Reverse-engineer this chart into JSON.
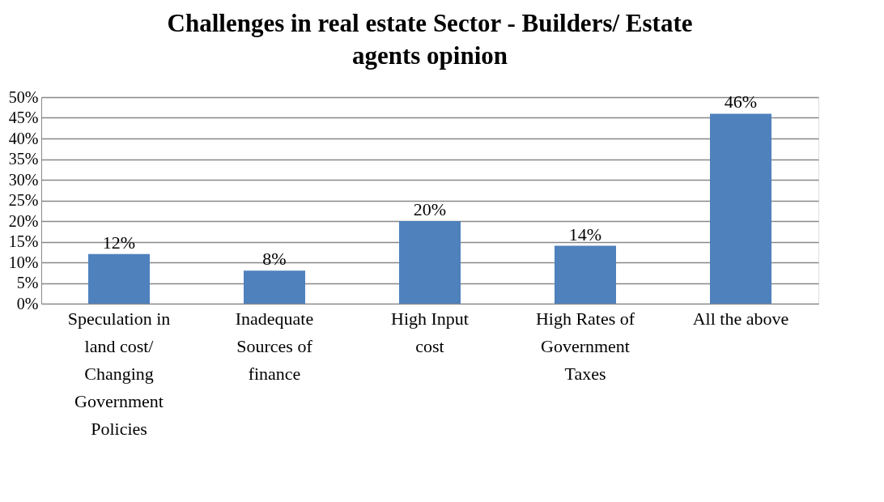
{
  "chart_data": {
    "type": "bar",
    "title": "Challenges in real estate Sector - Builders/ Estate agents opinion",
    "categories": [
      "Speculation in land cost/ Changing Government Policies",
      "Inadequate Sources of finance",
      "High Input cost",
      "High Rates of Government Taxes",
      "All the above"
    ],
    "values": [
      12,
      8,
      20,
      14,
      46
    ],
    "value_labels": [
      "12%",
      "8%",
      "20%",
      "14%",
      "46%"
    ],
    "color": "#4f81bd",
    "ylim": [
      0,
      50
    ],
    "yticks": [
      {
        "value": 0,
        "label": "0%"
      },
      {
        "value": 5,
        "label": "5%"
      },
      {
        "value": 10,
        "label": "10%"
      },
      {
        "value": 15,
        "label": "15%"
      },
      {
        "value": 20,
        "label": "20%"
      },
      {
        "value": 25,
        "label": "25%"
      },
      {
        "value": 30,
        "label": "30%"
      },
      {
        "value": 35,
        "label": "35%"
      },
      {
        "value": 40,
        "label": "40%"
      },
      {
        "value": 45,
        "label": "45%"
      },
      {
        "value": 50,
        "label": "50%"
      }
    ],
    "grid": "y"
  }
}
